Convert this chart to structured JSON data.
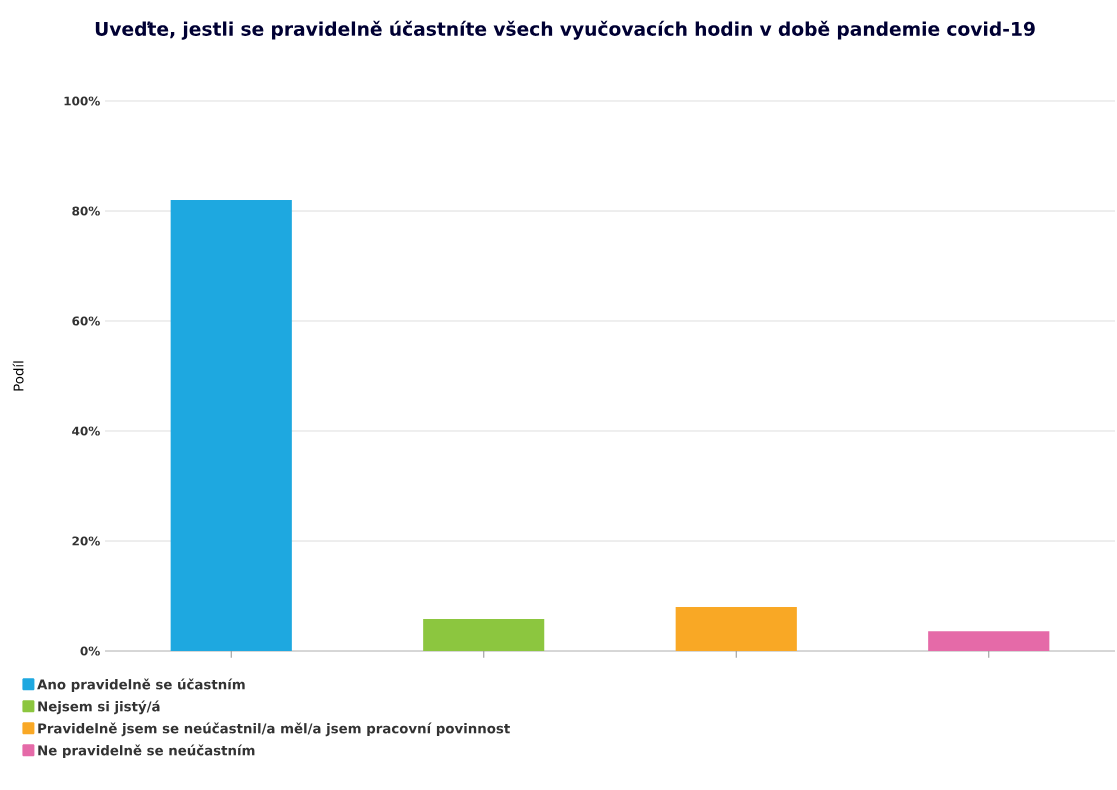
{
  "chart_data": {
    "type": "bar",
    "title": "Uveďte, jestli se pravidelně účastníte všech vyučovacích hodin v době pandemie covid-19",
    "ylabel": "Podíl",
    "categories": [
      null,
      null,
      null,
      null
    ],
    "series": [
      {
        "name": "Ano pravidelně se účastním",
        "color": "#1ea8e0",
        "values": [
          82,
          null,
          null,
          null
        ]
      },
      {
        "name": "Nejsem si jistý/á",
        "color": "#8cc63f",
        "values": [
          null,
          5.8,
          null,
          null
        ]
      },
      {
        "name": "Pravidelně jsem se neúčastnil/a měl/a jsem pracovní povinnost",
        "color": "#f9a825",
        "values": [
          null,
          null,
          8,
          null
        ]
      },
      {
        "name": "Ne pravidelně se neúčastním",
        "color": "#e56aa8",
        "values": [
          null,
          null,
          null,
          3.6
        ]
      }
    ],
    "ylim": [
      0,
      100
    ],
    "yticks": [
      {
        "value": 0,
        "label": "0%"
      },
      {
        "value": 20,
        "label": "20%"
      },
      {
        "value": 40,
        "label": "40%"
      },
      {
        "value": 60,
        "label": "60%"
      },
      {
        "value": 80,
        "label": "80%"
      },
      {
        "value": 100,
        "label": "100%"
      }
    ],
    "grid": "y",
    "legend": "bottom",
    "tick_labels": "y"
  }
}
